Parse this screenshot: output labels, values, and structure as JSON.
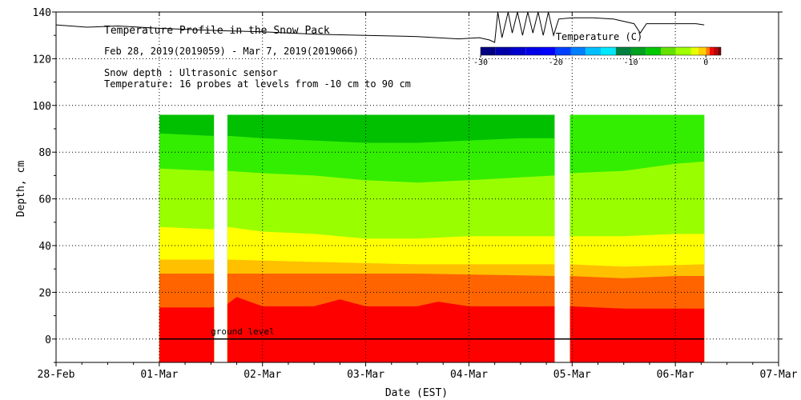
{
  "chart_data": {
    "type": "heatmap",
    "title": "Temperature Profile in the Snow Pack",
    "subtitle": "Feb 28, 2019(2019059) - Mar  7, 2019(2019066)",
    "notes": [
      "Snow depth : Ultrasonic sensor",
      "Temperature: 16 probes at levels from -10 cm to 90 cm"
    ],
    "xlabel": "Date (EST)",
    "ylabel": "Depth, cm",
    "x_unit": "days since 28-Feb 00:00",
    "xlim": [
      0,
      7
    ],
    "ylim": [
      -10,
      140
    ],
    "x_tick_labels": [
      "28-Feb",
      "01-Mar",
      "02-Mar",
      "03-Mar",
      "04-Mar",
      "05-Mar",
      "06-Mar",
      "07-Mar"
    ],
    "x_tick_values": [
      0,
      1,
      2,
      3,
      4,
      5,
      6,
      7
    ],
    "y_tick_values": [
      0,
      20,
      40,
      60,
      80,
      100,
      120,
      140
    ],
    "grid": "dotted",
    "ground_label": "ground level",
    "ground_level": 0,
    "profile_top": 96,
    "data_segments": [
      [
        1.0,
        1.53
      ],
      [
        1.66,
        4.83
      ],
      [
        4.98,
        6.28
      ]
    ],
    "colorbar": {
      "label": "Temperature (C)",
      "range": [
        -30,
        2
      ],
      "tick_labels": [
        "-30",
        "-20",
        "-10",
        "0"
      ],
      "tick_values": [
        -30,
        -20,
        -10,
        0
      ],
      "bins": [
        {
          "from": -30,
          "to": -28,
          "color": "#000080"
        },
        {
          "from": -28,
          "to": -26,
          "color": "#0000a8"
        },
        {
          "from": -26,
          "to": -24,
          "color": "#0000cc"
        },
        {
          "from": -24,
          "to": -22,
          "color": "#0000e8"
        },
        {
          "from": -22,
          "to": -20,
          "color": "#0000ff"
        },
        {
          "from": -20,
          "to": -18,
          "color": "#0040ff"
        },
        {
          "from": -18,
          "to": -16,
          "color": "#0080ff"
        },
        {
          "from": -16,
          "to": -14,
          "color": "#00c0ff"
        },
        {
          "from": -14,
          "to": -12,
          "color": "#00e8ff"
        },
        {
          "from": -12,
          "to": -10,
          "color": "#008040"
        },
        {
          "from": -10,
          "to": -8,
          "color": "#00a020"
        },
        {
          "from": -8,
          "to": -6,
          "color": "#00c800"
        },
        {
          "from": -6,
          "to": -4,
          "color": "#66e000"
        },
        {
          "from": -4,
          "to": -2,
          "color": "#a0ff00"
        },
        {
          "from": -2,
          "to": -1,
          "color": "#e8ff00"
        },
        {
          "from": -1,
          "to": 0,
          "color": "#ffd000"
        },
        {
          "from": 0,
          "to": 0.5,
          "color": "#ff8000"
        },
        {
          "from": 0.5,
          "to": 1,
          "color": "#ff0000"
        },
        {
          "from": 1,
          "to": 1.5,
          "color": "#c00000"
        },
        {
          "from": 1.5,
          "to": 2,
          "color": "#800000"
        }
      ]
    },
    "bands": [
      {
        "color": "#ff0000",
        "upper": [
          [
            1.0,
            13.5
          ],
          [
            1.5,
            13.5
          ],
          [
            1.66,
            15
          ],
          [
            1.75,
            18
          ],
          [
            2.0,
            14
          ],
          [
            2.5,
            14
          ],
          [
            2.75,
            17
          ],
          [
            3.0,
            14
          ],
          [
            3.5,
            14
          ],
          [
            3.7,
            16
          ],
          [
            4.0,
            14
          ],
          [
            4.5,
            14
          ],
          [
            4.83,
            14
          ],
          [
            4.98,
            14
          ],
          [
            5.5,
            13
          ],
          [
            6.0,
            13
          ],
          [
            6.28,
            13
          ]
        ]
      },
      {
        "color": "#ff6400",
        "upper": [
          [
            1.0,
            28
          ],
          [
            1.5,
            28
          ],
          [
            1.66,
            28
          ],
          [
            2.5,
            28
          ],
          [
            3.5,
            28
          ],
          [
            4.83,
            27
          ],
          [
            4.98,
            27
          ],
          [
            5.5,
            26
          ],
          [
            6.0,
            27
          ],
          [
            6.28,
            27
          ]
        ]
      },
      {
        "color": "#ffc000",
        "upper": [
          [
            1.0,
            34
          ],
          [
            1.5,
            34
          ],
          [
            1.66,
            34
          ],
          [
            2.5,
            33
          ],
          [
            3.5,
            32
          ],
          [
            4.83,
            32
          ],
          [
            4.98,
            32
          ],
          [
            5.5,
            31
          ],
          [
            6.28,
            32
          ]
        ]
      },
      {
        "color": "#ffff00",
        "upper": [
          [
            1.0,
            48
          ],
          [
            1.5,
            47
          ],
          [
            1.66,
            48
          ],
          [
            2.0,
            46
          ],
          [
            2.5,
            45
          ],
          [
            3.0,
            43
          ],
          [
            3.5,
            43
          ],
          [
            4.0,
            44
          ],
          [
            4.83,
            44
          ],
          [
            4.98,
            44
          ],
          [
            5.5,
            44
          ],
          [
            6.0,
            45
          ],
          [
            6.28,
            45
          ]
        ]
      },
      {
        "color": "#99ff00",
        "upper": [
          [
            1.0,
            73
          ],
          [
            1.5,
            72
          ],
          [
            1.66,
            72
          ],
          [
            2.0,
            71
          ],
          [
            2.5,
            70
          ],
          [
            3.0,
            68
          ],
          [
            3.5,
            67
          ],
          [
            4.0,
            68
          ],
          [
            4.83,
            70
          ],
          [
            4.98,
            71
          ],
          [
            5.5,
            72
          ],
          [
            6.0,
            75
          ],
          [
            6.28,
            76
          ]
        ]
      },
      {
        "color": "#33ee00",
        "upper": [
          [
            1.0,
            88
          ],
          [
            1.5,
            87
          ],
          [
            1.66,
            87
          ],
          [
            2.0,
            86
          ],
          [
            2.5,
            85
          ],
          [
            3.0,
            84
          ],
          [
            3.5,
            84
          ],
          [
            4.0,
            85
          ],
          [
            4.5,
            86
          ],
          [
            4.83,
            86
          ],
          [
            4.98,
            96
          ],
          [
            6.28,
            96
          ]
        ]
      },
      {
        "color": "#00c000",
        "upper": [
          [
            1.0,
            96
          ],
          [
            6.28,
            96
          ]
        ]
      }
    ],
    "snow_depth": [
      [
        0,
        134.5
      ],
      [
        0.3,
        133.5
      ],
      [
        0.6,
        134
      ],
      [
        1.0,
        133
      ],
      [
        1.3,
        132.5
      ],
      [
        1.6,
        132
      ],
      [
        2.0,
        131.5
      ],
      [
        2.5,
        130.5
      ],
      [
        3.0,
        130
      ],
      [
        3.5,
        129.5
      ],
      [
        3.9,
        128.5
      ],
      [
        4.1,
        129
      ],
      [
        4.2,
        128
      ],
      [
        4.25,
        127
      ],
      [
        4.28,
        140
      ],
      [
        4.32,
        129
      ],
      [
        4.38,
        140
      ],
      [
        4.42,
        131
      ],
      [
        4.47,
        140
      ],
      [
        4.52,
        130
      ],
      [
        4.57,
        140
      ],
      [
        4.62,
        131
      ],
      [
        4.67,
        140
      ],
      [
        4.72,
        130
      ],
      [
        4.77,
        140
      ],
      [
        4.82,
        130
      ],
      [
        4.87,
        137
      ],
      [
        5.0,
        137.5
      ],
      [
        5.2,
        137.5
      ],
      [
        5.4,
        137
      ],
      [
        5.6,
        135
      ],
      [
        5.66,
        131
      ],
      [
        5.72,
        135
      ],
      [
        5.9,
        135
      ],
      [
        6.2,
        135
      ],
      [
        6.28,
        134.5
      ]
    ]
  }
}
